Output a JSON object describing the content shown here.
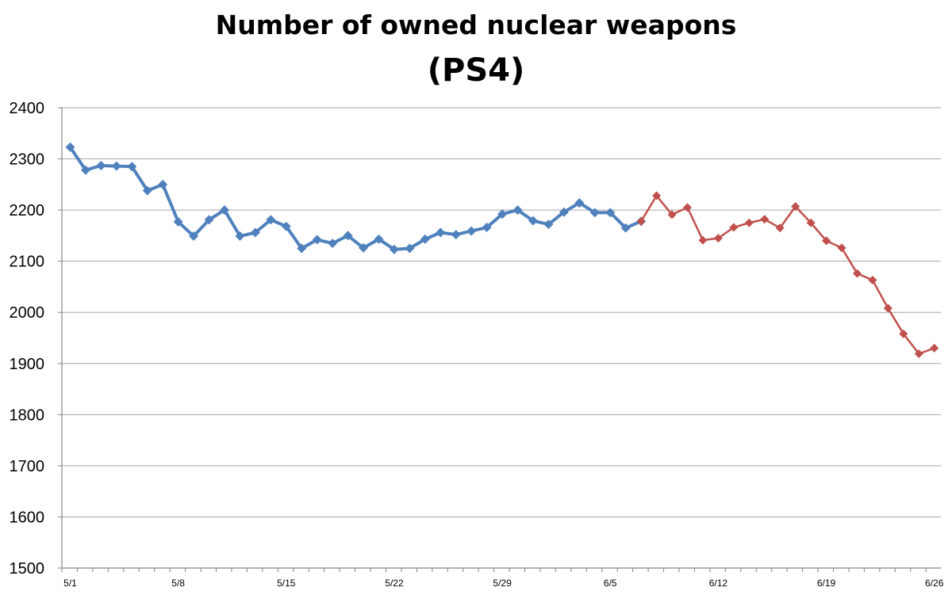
{
  "chart_data": {
    "type": "line",
    "title": "Number of owned nuclear weapons",
    "subtitle": "(PS4)",
    "xlabel": "",
    "ylabel": "",
    "ylim": [
      1500,
      2400
    ],
    "yticks": [
      1500,
      1600,
      1700,
      1800,
      1900,
      2000,
      2100,
      2200,
      2300,
      2400
    ],
    "xtick_labels": [
      "5/1",
      "5/8",
      "5/15",
      "5/22",
      "5/29",
      "6/5",
      "6/12",
      "6/19",
      "6/26"
    ],
    "grid": "horizontal",
    "colors": {
      "series_blue": "#4F81BD",
      "series_red": "#C0504D",
      "grid": "#A6A6A6",
      "axis": "#868686"
    },
    "series": [
      {
        "color": "#4F81BD",
        "start": "5/1",
        "values": [
          2323,
          2278,
          2287,
          2286,
          2285,
          2238,
          2250,
          2177,
          2149,
          2181,
          2200,
          2149,
          2156,
          2181,
          2168,
          2125,
          2142,
          2135,
          2150,
          2126,
          2143,
          2123,
          2125,
          2143,
          2156,
          2152,
          2159,
          2166,
          2192,
          2200,
          2179,
          2172,
          2196,
          2214,
          2195,
          2195,
          2165,
          2178
        ]
      },
      {
        "color": "#C0504D",
        "start": "6/7",
        "values": [
          2178,
          2228,
          2191,
          2205,
          2141,
          2145,
          2166,
          2175,
          2182,
          2165,
          2207,
          2175,
          2140,
          2126,
          2076,
          2063,
          2008,
          1958,
          1919,
          1930
        ]
      }
    ]
  }
}
